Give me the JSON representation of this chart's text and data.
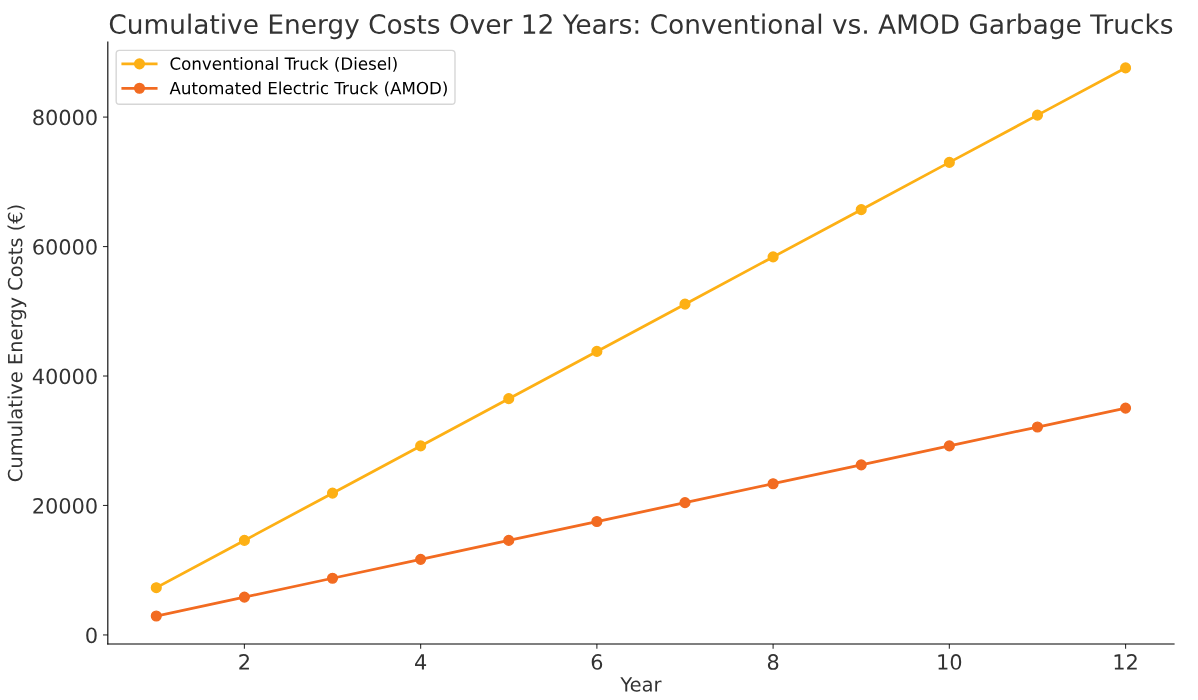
{
  "chart_data": {
    "type": "line",
    "title": "Cumulative Energy Costs Over 12 Years: Conventional vs. AMOD Garbage Trucks",
    "xlabel": "Year",
    "ylabel": "Cumulative Energy Costs (€)",
    "x": [
      1,
      2,
      3,
      4,
      5,
      6,
      7,
      8,
      9,
      10,
      11,
      12
    ],
    "series": [
      {
        "name": "Conventional Truck (Diesel)",
        "color": "#fdb015",
        "values": [
          7300,
          14600,
          21900,
          29200,
          36500,
          43800,
          51100,
          58400,
          65700,
          73000,
          80300,
          87600
        ]
      },
      {
        "name": "Automated Electric Truck (AMOD)",
        "color": "#f26b21",
        "values": [
          2920,
          5840,
          8760,
          11680,
          14600,
          17520,
          20440,
          23360,
          26280,
          29200,
          32120,
          35040
        ]
      }
    ],
    "xlim": [
      0.45,
      12.55
    ],
    "ylim": [
      -1400,
      91600
    ],
    "xticks": [
      2,
      4,
      6,
      8,
      10,
      12
    ],
    "yticks": [
      0,
      20000,
      40000,
      60000,
      80000
    ],
    "grid": false,
    "legend": "top left",
    "marker": "circle",
    "line_style": "solid"
  }
}
